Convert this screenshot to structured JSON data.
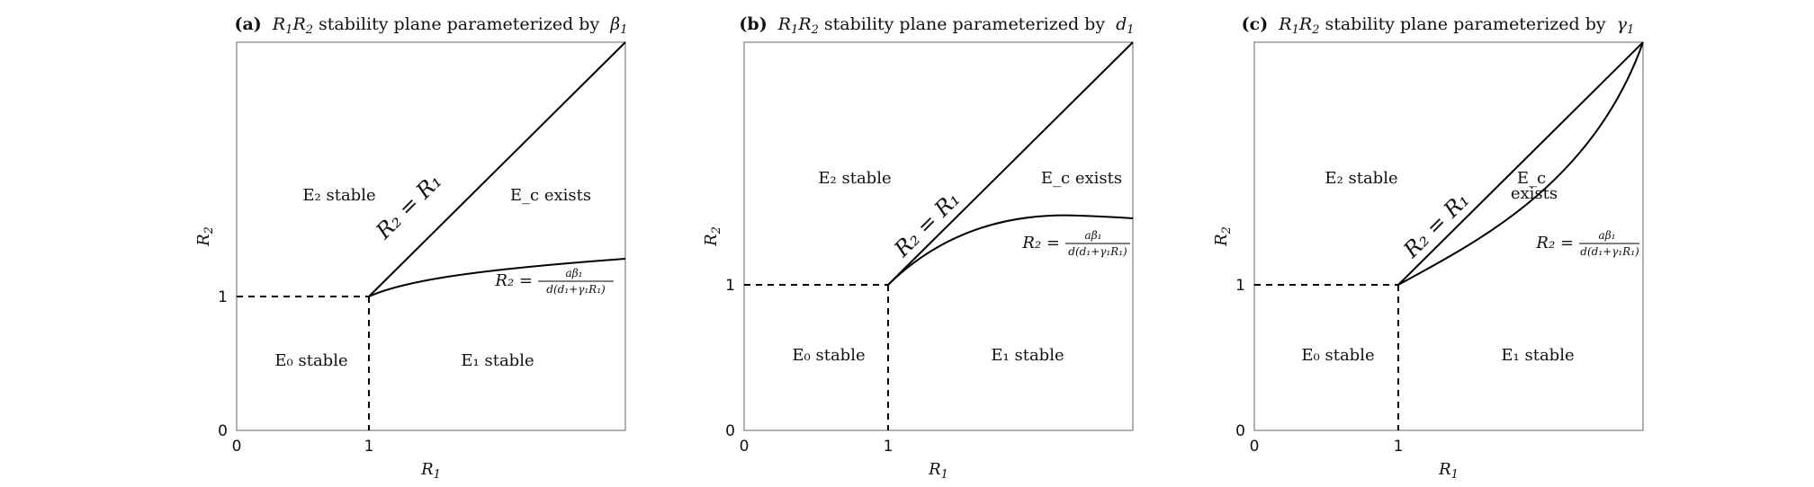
{
  "panels": [
    {
      "title_prefix": "(a)",
      "title_text": "stability plane parameterized by",
      "title_param": "β",
      "title_param_sub": "1",
      "x_axis_label": "R",
      "x_axis_label_sub": "1",
      "y_axis_label": "R",
      "y_axis_label_sub": "2",
      "x_ticks": [
        "0",
        "1"
      ],
      "y_ticks": [
        "0",
        "1"
      ],
      "diag_label": "R₂ = R₁",
      "regions": {
        "e2": "E₂ stable",
        "ec": "E_c exists",
        "e0": "E₀ stable",
        "e1": "E₁ stable"
      },
      "curve_label_lhs": "R₂ =",
      "curve_label_num": "aβ₁",
      "curve_label_den": "d(d₁+γ₁R₁)"
    },
    {
      "title_prefix": "(b)",
      "title_text": "stability plane parameterized by",
      "title_param": "d",
      "title_param_sub": "1",
      "x_axis_label": "R",
      "x_axis_label_sub": "1",
      "y_axis_label": "R",
      "y_axis_label_sub": "2",
      "x_ticks": [
        "0",
        "1"
      ],
      "y_ticks": [
        "0",
        "1"
      ],
      "diag_label": "R₂ = R₁",
      "regions": {
        "e2": "E₂ stable",
        "ec": "E_c exists",
        "e0": "E₀ stable",
        "e1": "E₁ stable"
      },
      "curve_label_lhs": "R₂ =",
      "curve_label_num": "aβ₁",
      "curve_label_den": "d(d₁+γ₁R₁)"
    },
    {
      "title_prefix": "(c)",
      "title_text": "stability plane parameterized by",
      "title_param": "γ",
      "title_param_sub": "1",
      "x_axis_label": "R",
      "x_axis_label_sub": "1",
      "y_axis_label": "R",
      "y_axis_label_sub": "2",
      "x_ticks": [
        "0",
        "1"
      ],
      "y_ticks": [
        "0",
        "1"
      ],
      "diag_label": "R₂ = R₁",
      "regions": {
        "e2": "E₂ stable",
        "ec": "E_c",
        "ec2": "exists",
        "e0": "E₀ stable",
        "e1": "E₁ stable"
      },
      "curve_label_lhs": "R₂ =",
      "curve_label_num": "aβ₁",
      "curve_label_den": "d(d₁+γ₁R₁)"
    }
  ]
}
